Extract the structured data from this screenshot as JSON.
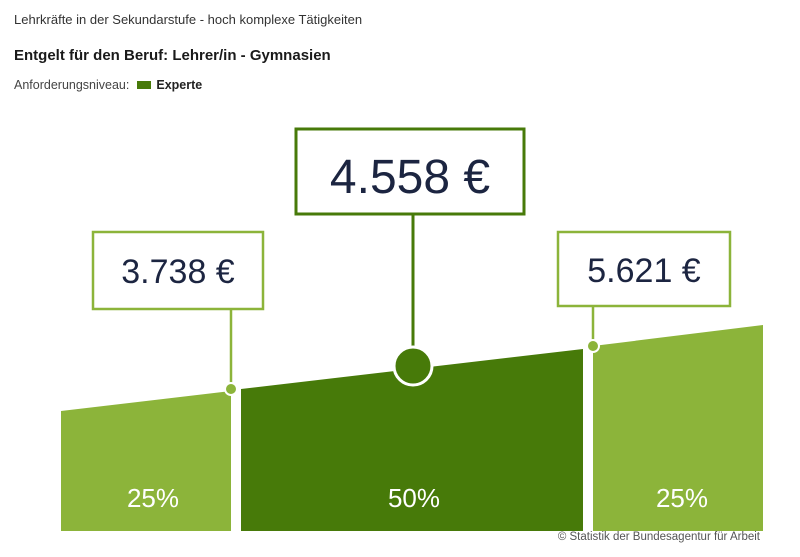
{
  "header": {
    "subtitle": "Lehrkräfte in der Sekundarstufe - hoch komplexe Tätigkeiten",
    "title": "Entgelt für den Beruf: Lehrer/in - Gymnasien",
    "level_label": "Anforderungsniveau:",
    "level_value": "Experte"
  },
  "colors": {
    "light_green": "#8cb43a",
    "dark_green": "#477a09",
    "text_dark": "#1c2541"
  },
  "chart_data": {
    "type": "area",
    "title": "Entgelt für den Beruf: Lehrer/in - Gymnasien",
    "segments": [
      {
        "share_label": "25%",
        "share": 25,
        "color": "light"
      },
      {
        "share_label": "50%",
        "share": 50,
        "color": "dark"
      },
      {
        "share_label": "25%",
        "share": 25,
        "color": "light"
      }
    ],
    "markers": [
      {
        "id": "q1",
        "label": "3.738 €",
        "value": 3738,
        "emphasis": false
      },
      {
        "id": "median",
        "label": "4.558 €",
        "value": 4558,
        "emphasis": true
      },
      {
        "id": "q3",
        "label": "5.621 €",
        "value": 5621,
        "emphasis": false
      }
    ]
  },
  "footer": {
    "source": "© Statistik der Bundesagentur für Arbeit"
  }
}
